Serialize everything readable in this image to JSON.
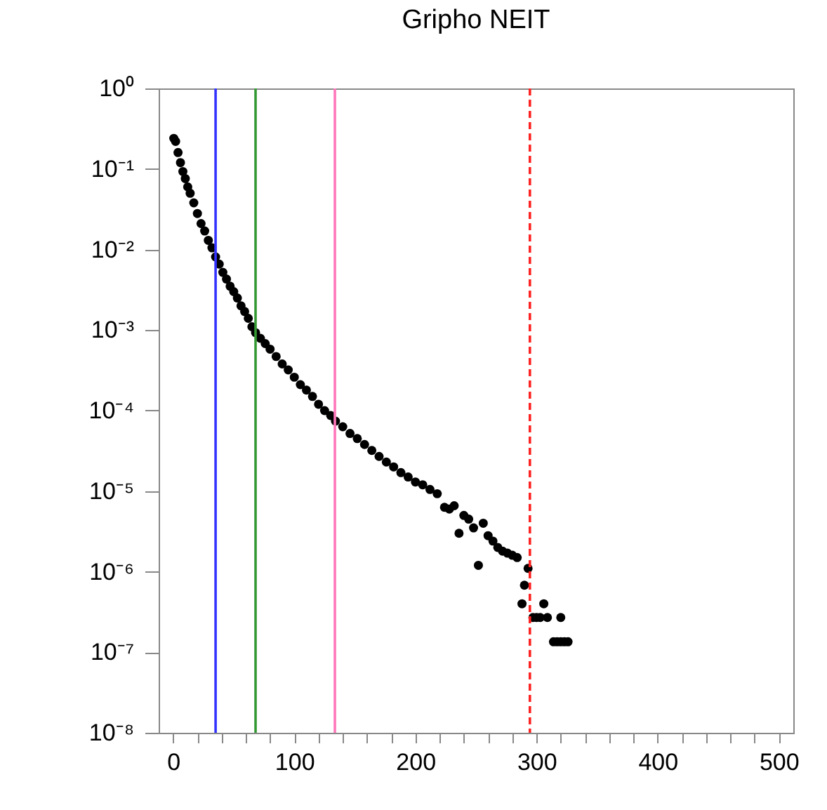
{
  "chart_data": {
    "type": "scatter",
    "title": "Gripho NEIT",
    "log": "y",
    "grid": false,
    "marker": "circle",
    "xlim": [
      -12,
      512
    ],
    "ylim": [
      1e-08,
      1
    ],
    "xticks": [
      0,
      {
        "value": 20,
        "label": null
      },
      {
        "value": 40,
        "label": null
      },
      {
        "value": 60,
        "label": null
      },
      {
        "value": 80,
        "label": null
      },
      100,
      {
        "value": 120,
        "label": null
      },
      {
        "value": 140,
        "label": null
      },
      {
        "value": 160,
        "label": null
      },
      {
        "value": 180,
        "label": null
      },
      200,
      {
        "value": 220,
        "label": null
      },
      {
        "value": 240,
        "label": null
      },
      {
        "value": 260,
        "label": null
      },
      {
        "value": 280,
        "label": null
      },
      300,
      {
        "value": 320,
        "label": null
      },
      {
        "value": 340,
        "label": null
      },
      {
        "value": 360,
        "label": null
      },
      {
        "value": 380,
        "label": null
      },
      400,
      {
        "value": 420,
        "label": null
      },
      {
        "value": 440,
        "label": null
      },
      {
        "value": 460,
        "label": null
      },
      {
        "value": 480,
        "label": null
      },
      500
    ],
    "yticks": [
      {
        "value": 1e-08,
        "label": "10⁻⁸"
      },
      {
        "value": 1e-07,
        "label": "10⁻⁷"
      },
      {
        "value": 1e-06,
        "label": "10⁻⁶"
      },
      {
        "value": 1e-05,
        "label": "10⁻⁵"
      },
      {
        "value": 0.0001,
        "label": "10⁻⁴"
      },
      {
        "value": 0.001,
        "label": "10⁻³"
      },
      {
        "value": 0.01,
        "label": "10⁻²"
      },
      {
        "value": 0.1,
        "label": "10⁻¹"
      },
      {
        "value": 1,
        "label": "10⁰"
      }
    ],
    "ref_lines": [
      {
        "axis": "x",
        "value": 35,
        "color": "#3333ff",
        "line_style": "solid"
      },
      {
        "axis": "x",
        "value": 68,
        "color": "#339933",
        "line_style": "solid"
      },
      {
        "axis": "x",
        "value": 133.5,
        "color": "#ff77bb",
        "line_style": "solid"
      },
      {
        "axis": "x",
        "value": 294.5,
        "color": "#ff2222",
        "line_style": "dashed"
      }
    ],
    "x": [
      0.5,
      2,
      4,
      6,
      8,
      10,
      12,
      14,
      17,
      20,
      23,
      26,
      29,
      32,
      35,
      38,
      41,
      44,
      47,
      50,
      53,
      56,
      59,
      62,
      65,
      68,
      72,
      76,
      80,
      85,
      90,
      95,
      100,
      105,
      110,
      115,
      120,
      125,
      130,
      134,
      140,
      146,
      152,
      158,
      164,
      170,
      176,
      182,
      188,
      194,
      200,
      206,
      212,
      218,
      224,
      228,
      232,
      236,
      240,
      244,
      248,
      252,
      256,
      260,
      264,
      268,
      272,
      276,
      280,
      284,
      288,
      290,
      293,
      297,
      300,
      303,
      306,
      309,
      314,
      317,
      320,
      320,
      323,
      326
    ],
    "series": [
      {
        "color": "#000000",
        "values": [
          0.24,
          0.22,
          0.16,
          0.12,
          0.093,
          0.076,
          0.06,
          0.05,
          0.038,
          0.028,
          0.021,
          0.017,
          0.013,
          0.0105,
          0.0081,
          0.0066,
          0.0052,
          0.0043,
          0.0035,
          0.003,
          0.0025,
          0.002,
          0.0017,
          0.0014,
          0.0011,
          0.00093,
          0.00079,
          0.00068,
          0.00058,
          0.00047,
          0.00038,
          0.00032,
          0.00026,
          0.00021,
          0.00018,
          0.00015,
          0.00012,
          0.0001,
          8.7e-05,
          7.4e-05,
          6.3e-05,
          5.2e-05,
          4.5e-05,
          3.8e-05,
          3.2e-05,
          2.7e-05,
          2.3e-05,
          2e-05,
          1.7e-05,
          1.5e-05,
          1.3e-05,
          1.2e-05,
          1.05e-05,
          9.3e-06,
          6.3e-06,
          6e-06,
          6.6e-06,
          3e-06,
          5e-06,
          4.5e-06,
          3.5e-06,
          1.2e-06,
          4e-06,
          2.8e-06,
          2.4e-06,
          2e-06,
          1.8e-06,
          1.7e-06,
          1.6e-06,
          1.5e-06,
          4e-07,
          6.8e-07,
          1.1e-06,
          2.7e-07,
          2.7e-07,
          2.7e-07,
          4e-07,
          2.7e-07,
          1.35e-07,
          1.35e-07,
          2.7e-07,
          1.35e-07,
          1.35e-07,
          1.35e-07
        ]
      }
    ]
  }
}
